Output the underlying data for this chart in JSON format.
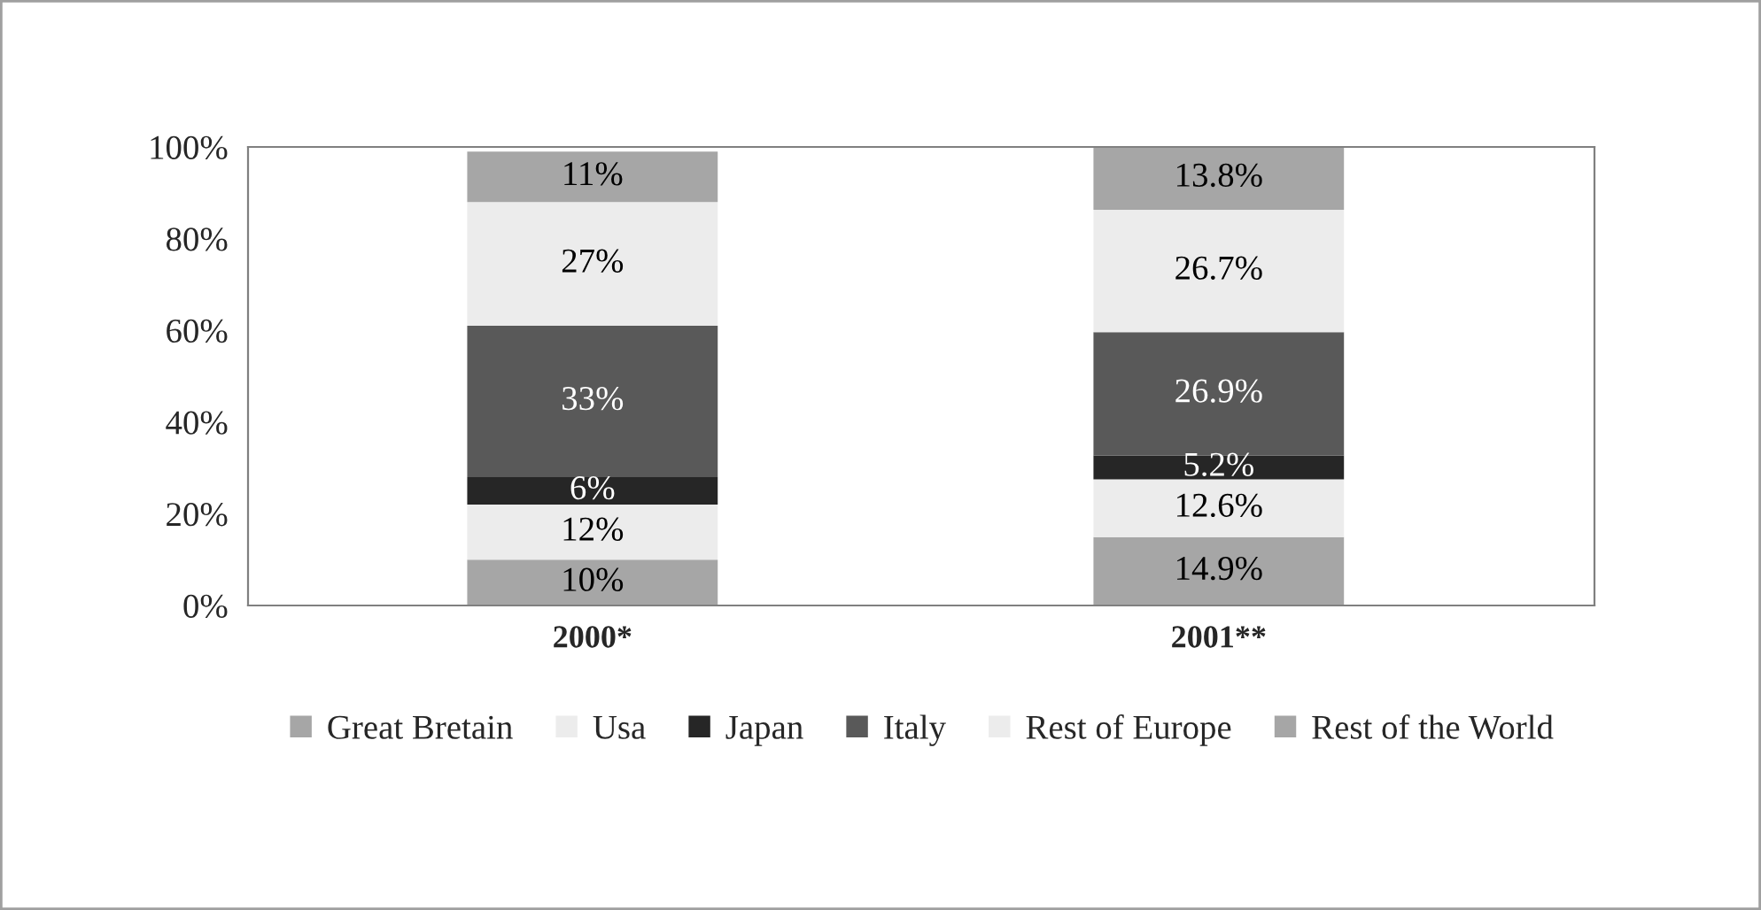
{
  "chart_data": {
    "type": "bar",
    "stacked": true,
    "categories": [
      "2000*",
      "2001**"
    ],
    "series": [
      {
        "name": "Great Bretain",
        "color": "#a6a6a6",
        "values": [
          10,
          14.9
        ],
        "value_labels": [
          "10%",
          "14.9%"
        ]
      },
      {
        "name": "Usa",
        "color": "#ececec",
        "values": [
          12,
          12.6
        ],
        "value_labels": [
          "12%",
          "12.6%"
        ]
      },
      {
        "name": "Japan",
        "color": "#262626",
        "values": [
          6,
          5.2
        ],
        "value_labels": [
          "6%",
          "5.2%"
        ]
      },
      {
        "name": "Italy",
        "color": "#595959",
        "values": [
          33,
          26.9
        ],
        "value_labels": [
          "33%",
          "26.9%"
        ]
      },
      {
        "name": "Rest of Europe",
        "color": "#ececec",
        "values": [
          27,
          26.7
        ],
        "value_labels": [
          "27%",
          "26.7%"
        ]
      },
      {
        "name": "Rest of the World",
        "color": "#a6a6a6",
        "values": [
          11,
          13.8
        ],
        "value_labels": [
          "11%",
          "13.8%"
        ]
      }
    ],
    "ylim": [
      0,
      100
    ],
    "yticks": [
      {
        "value": 0,
        "label": "0%"
      },
      {
        "value": 20,
        "label": "20%"
      },
      {
        "value": 40,
        "label": "40%"
      },
      {
        "value": 60,
        "label": "60%"
      },
      {
        "value": 80,
        "label": "80%"
      },
      {
        "value": 100,
        "label": "100%"
      }
    ],
    "grid": false,
    "legend": "bottom"
  }
}
